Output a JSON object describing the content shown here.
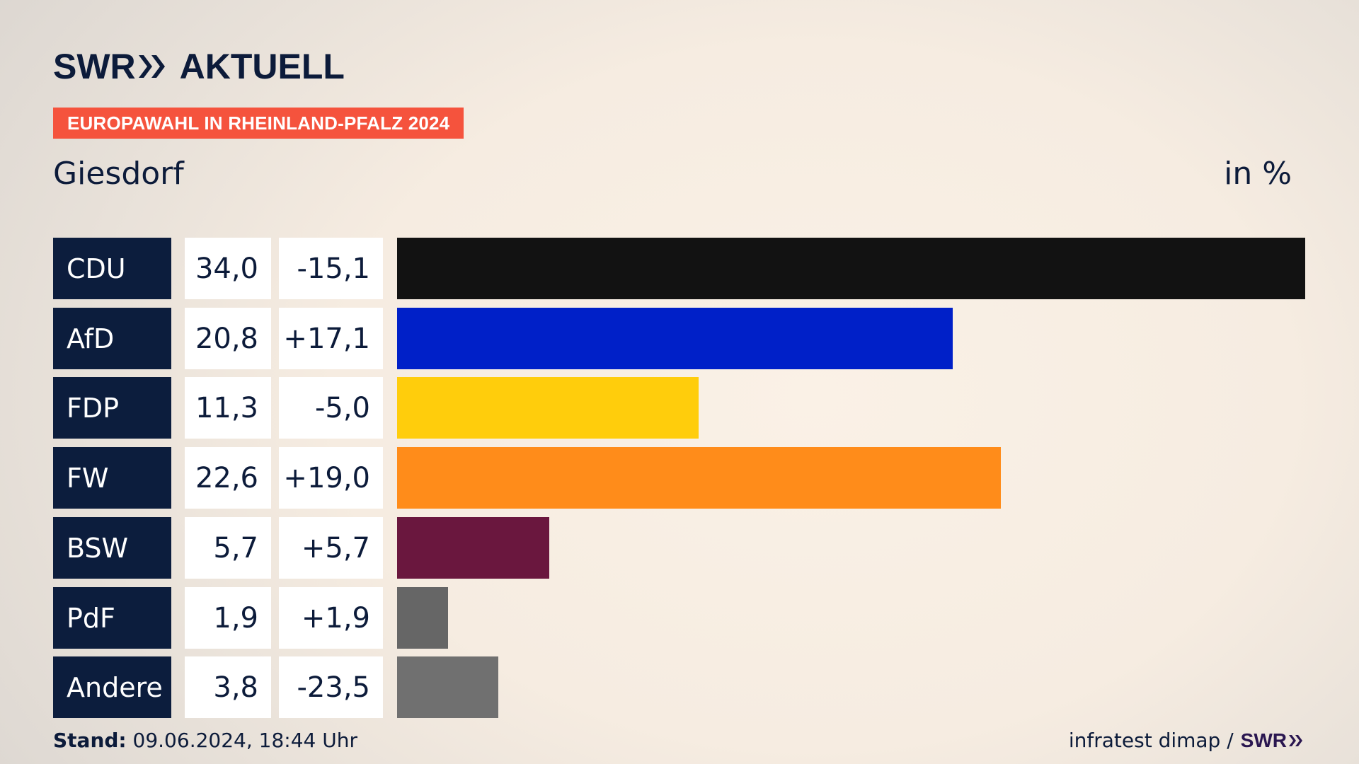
{
  "header": {
    "logo_text_left": "SWR",
    "logo_text_right": "AKTUELL",
    "banner": "EUROPAWAHL IN RHEINLAND-PFALZ 2024",
    "region": "Giesdorf",
    "unit": "in %"
  },
  "chart_data": {
    "type": "bar",
    "orientation": "horizontal",
    "title": "EUROPAWAHL IN RHEINLAND-PFALZ 2024",
    "subtitle": "Giesdorf",
    "unit": "in %",
    "categories": [
      "CDU",
      "AfD",
      "FDP",
      "FW",
      "BSW",
      "PdF",
      "Andere"
    ],
    "values": [
      34.0,
      20.8,
      11.3,
      22.6,
      5.7,
      1.9,
      3.8
    ],
    "value_labels": [
      "34,0",
      "20,8",
      "11,3",
      "22,6",
      "5,7",
      "1,9",
      "3,8"
    ],
    "change_labels": [
      "-15,1",
      "+17,1",
      "-5,0",
      "+19,0",
      "+5,7",
      "+1,9",
      "-23,5"
    ],
    "colors": [
      "#121212",
      "#0020c8",
      "#ffcd0c",
      "#ff8c1a",
      "#6a173e",
      "#666666",
      "#707070"
    ],
    "xlim": [
      0,
      34.0
    ]
  },
  "footer": {
    "stand_label": "Stand:",
    "stand_value": "09.06.2024, 18:44 Uhr",
    "source": "infratest dimap /",
    "source_brand": "SWR"
  }
}
